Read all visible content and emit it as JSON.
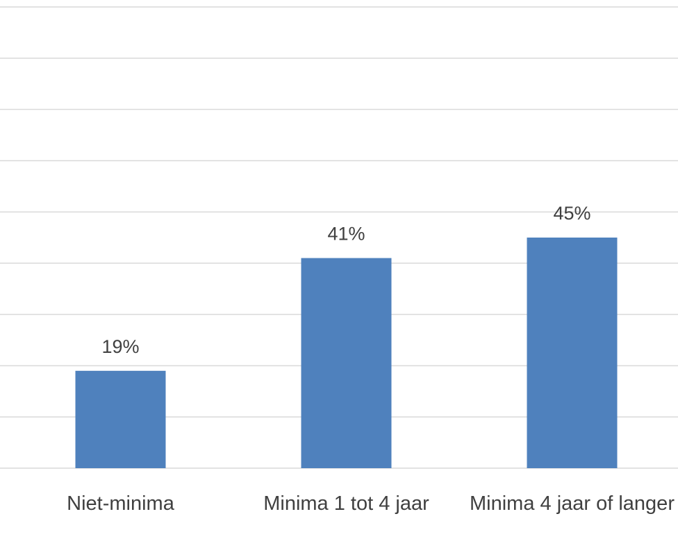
{
  "chart_data": {
    "type": "bar",
    "categories": [
      "Niet-minima",
      "Minima 1 tot 4 jaar",
      "Minima 4 jaar of langer"
    ],
    "values": [
      19,
      41,
      45
    ],
    "value_labels": [
      "19%",
      "41%",
      "45%"
    ],
    "color": "#4f81bd",
    "ylim": [
      0,
      90
    ],
    "yticks": [
      0,
      10,
      20,
      30,
      40,
      50,
      60,
      70,
      80,
      90
    ],
    "grid": true,
    "tick_labels": false
  }
}
